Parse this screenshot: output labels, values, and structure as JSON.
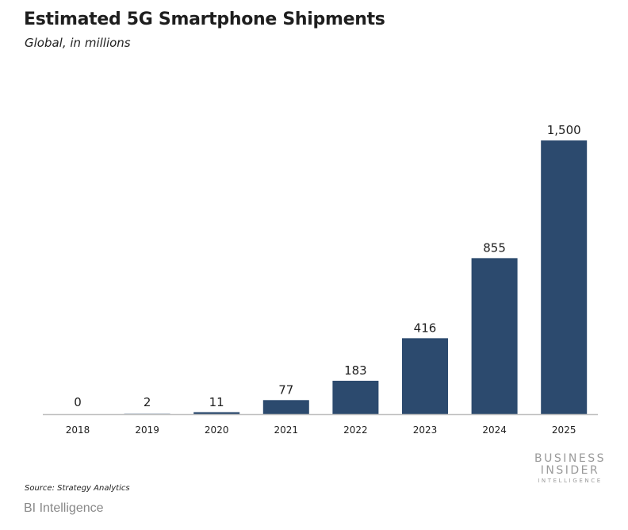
{
  "header": {
    "title": "Estimated 5G Smartphone Shipments",
    "subtitle": "Global, in millions"
  },
  "chart_data": {
    "type": "bar",
    "categories": [
      "2018",
      "2019",
      "2020",
      "2021",
      "2022",
      "2023",
      "2024",
      "2025"
    ],
    "values": [
      0,
      2,
      11,
      77,
      183,
      416,
      855,
      1500
    ],
    "value_labels": [
      "0",
      "2",
      "11",
      "77",
      "183",
      "416",
      "855",
      "1,500"
    ],
    "title": "Estimated 5G Smartphone Shipments",
    "subtitle": "Global, in millions",
    "ylim": [
      0,
      1500
    ],
    "grid": false,
    "bar_color": "#2c4a6e"
  },
  "footer": {
    "source": "Source: Strategy Analytics",
    "logo_line1": "BUSINESS",
    "logo_line2": "INSIDER",
    "logo_line3": "INTELLIGENCE",
    "caption": "BI Intelligence"
  },
  "colors": {
    "bar": "#2c4a6e",
    "axis": "#bfbfbf",
    "logo": "#9a9a9a",
    "caption": "#888888"
  }
}
